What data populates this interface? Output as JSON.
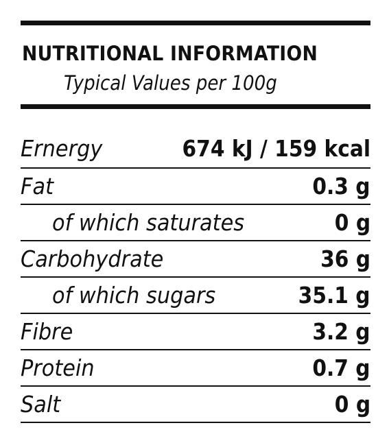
{
  "header": {
    "title": "NUTRITIONAL INFORMATION",
    "subtitle": "Typical Values per 100g"
  },
  "rows": [
    {
      "label": "Ernergy",
      "value": "674 kJ / 159 kcal"
    },
    {
      "label": "Fat",
      "value": "0.3 g"
    },
    {
      "label": "of which saturates",
      "value": "0 g"
    },
    {
      "label": "Carbohydrate",
      "value": "36 g"
    },
    {
      "label": "of which sugars",
      "value": "35.1 g"
    },
    {
      "label": "Fibre",
      "value": "3.2 g"
    },
    {
      "label": "Protein",
      "value": "0.7 g"
    },
    {
      "label": "Salt",
      "value": "0 g"
    }
  ]
}
